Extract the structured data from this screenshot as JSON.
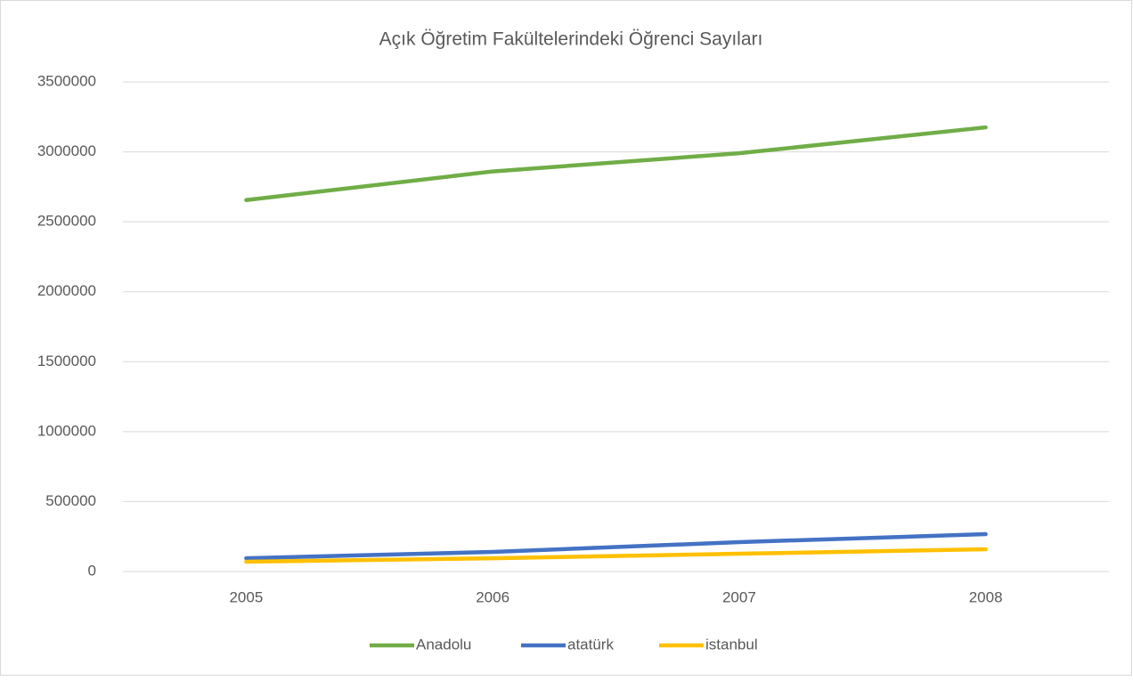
{
  "chart_data": {
    "type": "line",
    "title": "Açık Öğretim Fakültelerindeki Öğrenci Sayıları",
    "categories": [
      "2005",
      "2006",
      "2007",
      "2008"
    ],
    "series": [
      {
        "name": "Anadolu",
        "color": "#70ad47",
        "values": [
          2655000,
          2860000,
          2990000,
          3175000
        ]
      },
      {
        "name": "atatürk",
        "color": "#4472c4",
        "values": [
          95000,
          140000,
          210000,
          267000
        ]
      },
      {
        "name": "istanbul",
        "color": "#ffc000",
        "values": [
          70000,
          95000,
          127000,
          159000
        ]
      }
    ],
    "ylim": [
      0,
      3500000
    ],
    "yticks": [
      0,
      500000,
      1000000,
      1500000,
      2000000,
      2500000,
      3000000,
      3500000
    ],
    "grid": true,
    "legend": "bottom"
  }
}
